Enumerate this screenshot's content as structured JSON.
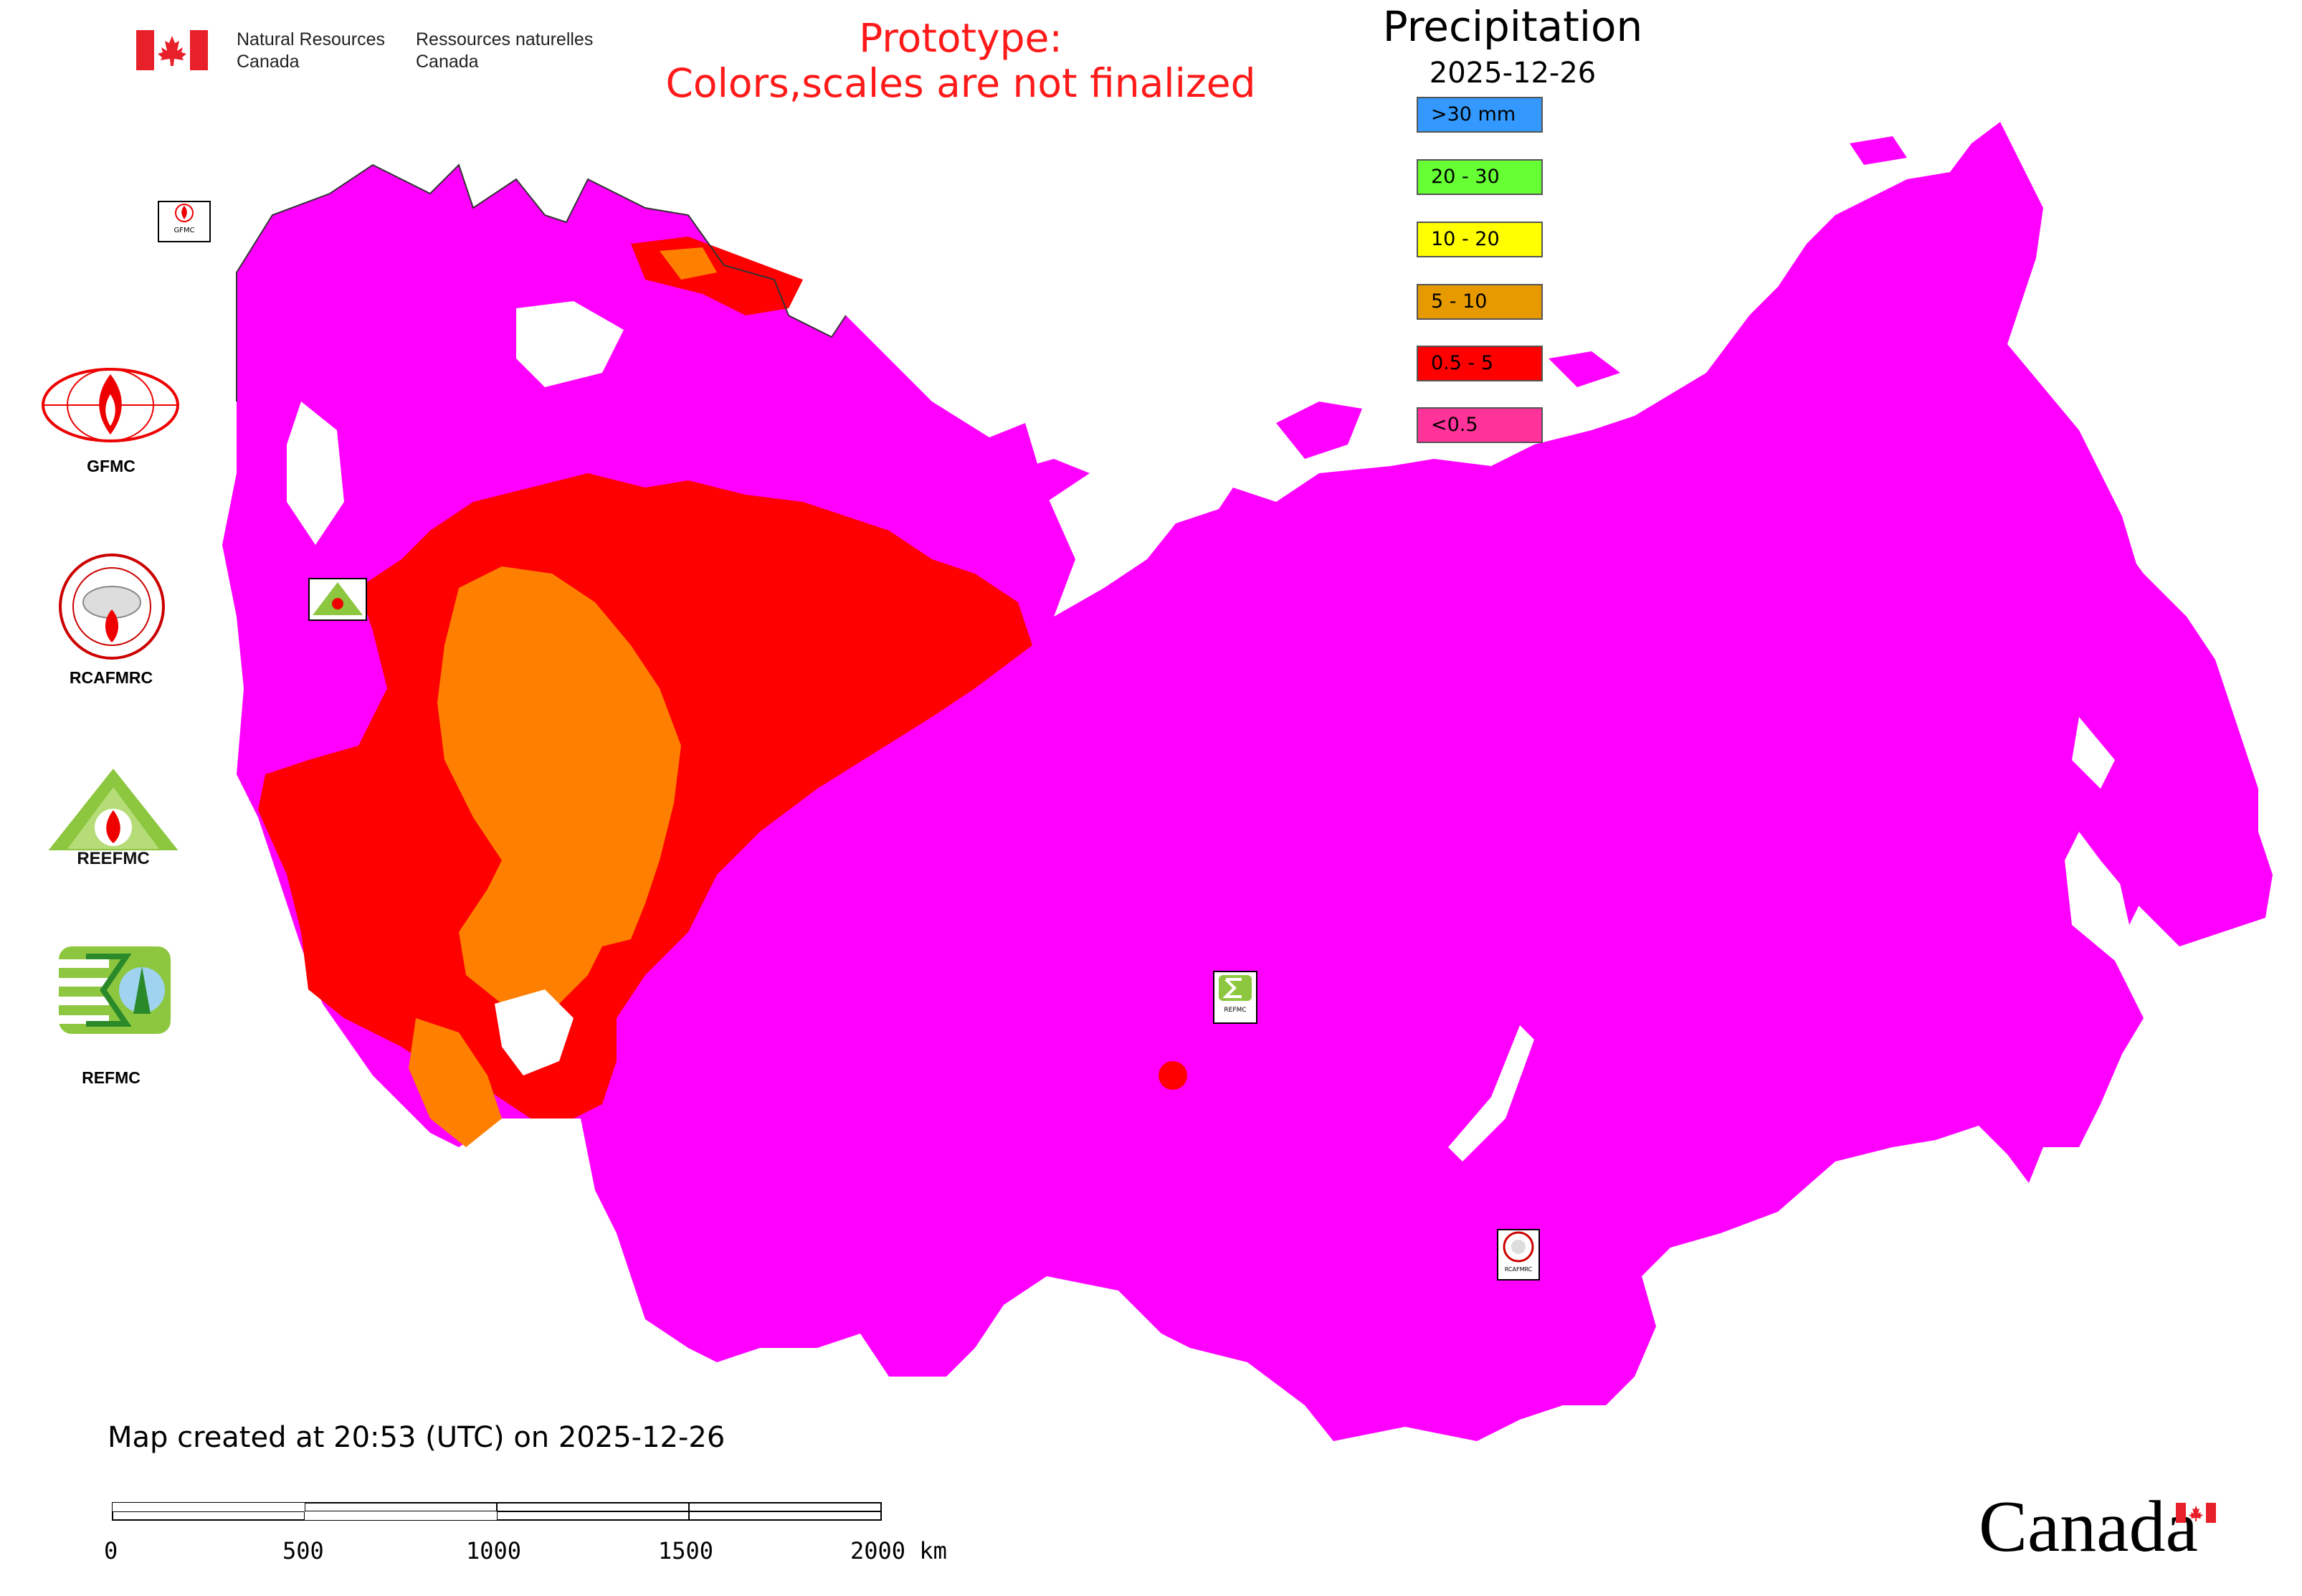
{
  "header": {
    "org_en_line1": "Natural Resources",
    "org_en_line2": "Canada",
    "org_fr_line1": "Ressources naturelles",
    "org_fr_line2": "Canada",
    "prototype_line1": "Prototype:",
    "prototype_line2": "Colors,scales are not finalized"
  },
  "legend": {
    "title": "Precipitation",
    "date": "2025-12-26",
    "items": [
      {
        "label": ">30 mm",
        "color": "#3399ff"
      },
      {
        "label": "20 - 30",
        "color": "#66ff33"
      },
      {
        "label": "10 - 20",
        "color": "#ffff00"
      },
      {
        "label": "5 - 10",
        "color": "#e69a00"
      },
      {
        "label": "0.5 - 5",
        "color": "#ff0000"
      },
      {
        "label": "<0.5",
        "color": "#ff3399"
      }
    ]
  },
  "map_colors": {
    "land_dominant": "#ff00ff",
    "rain_light": "#ff0000",
    "rain_moderate": "#ff8000",
    "water": "#ffffff"
  },
  "logos": [
    {
      "name": "GFMC",
      "icon": "gfmc-logo"
    },
    {
      "name": "RCAFMRC",
      "icon": "rcafmrc-logo"
    },
    {
      "name": "REEFMC",
      "icon": "reefmc-logo"
    },
    {
      "name": "REFMC",
      "icon": "refmc-logo"
    }
  ],
  "map_badges": {
    "gfmc_badge": "GFMC",
    "refmc_badge": "REFMC",
    "rcafmrc_badge": "RCAFMRC"
  },
  "footer": {
    "created": "Map created at 20:53 (UTC) on 2025-12-26",
    "scale_labels": [
      "0",
      "500",
      "1000",
      "1500",
      "2000 km"
    ],
    "wordmark": "Canada"
  }
}
